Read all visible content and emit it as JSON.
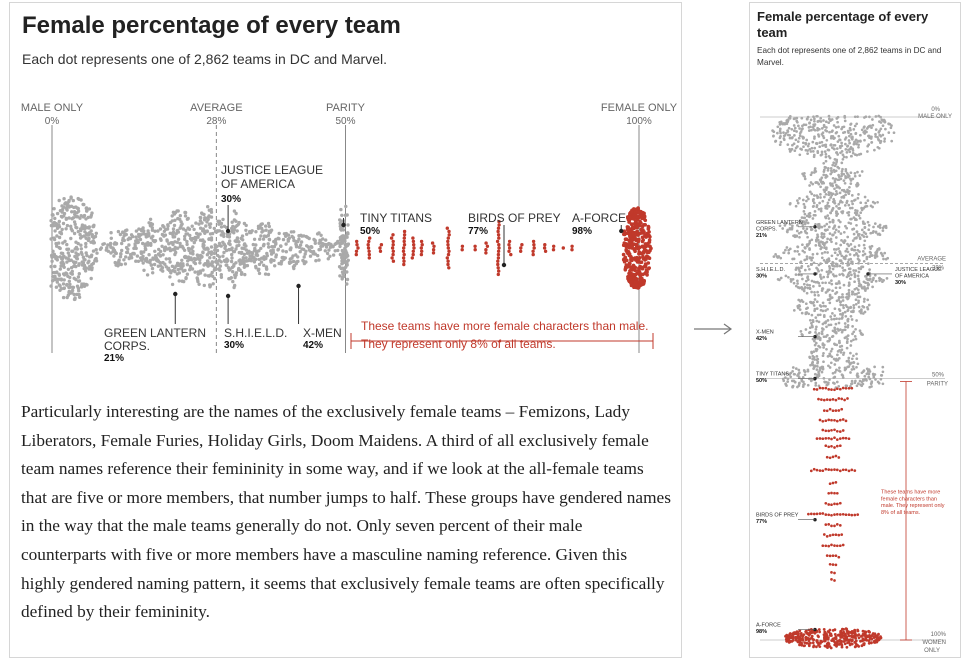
{
  "main": {
    "title": "Female percentage of every team",
    "subtitle": "Each dot represents one of 2,862 teams in DC and Marvel.",
    "axis_labels": [
      {
        "id": "male-only",
        "name": "MALE ONLY",
        "value_label": "0%",
        "value": 0,
        "dashed": false
      },
      {
        "id": "average",
        "name": "AVERAGE",
        "value_label": "28%",
        "value": 28,
        "dashed": true
      },
      {
        "id": "parity",
        "name": "PARITY",
        "value_label": "50%",
        "value": 50,
        "dashed": false
      },
      {
        "id": "female-only",
        "name": "FEMALE ONLY",
        "value_label": "100%",
        "value": 100,
        "dashed": false
      }
    ],
    "bracket_text": [
      "These teams have more female characters than male.",
      "They represent only 8% of all teams."
    ],
    "body_text": "Particularly interesting are the names of the exclusively female teams – Femizons, Lady Liberators, Female Furies, Holiday Girls, Doom Maidens. A third of all exclusively female team names reference their femininity in some way, and if we look at the all-female teams that are five or more members, that number jumps to half. These groups have gendered names in the way that the male teams generally do not. Only seven percent of their male counterparts with five or more members have a masculine naming reference. Given this highly gendered naming pattern, it seems that exclusively female teams are often specifically defined by their femininity."
  },
  "mini": {
    "title": "Female percentage of every team",
    "subtitle": "Each dot represents one of 2,862 teams in DC and Marvel.",
    "axis_labels": [
      {
        "id": "male-only",
        "lines": [
          "0%",
          "MALE ONLY"
        ],
        "value": 0
      },
      {
        "id": "average",
        "lines": [
          "AVERAGE",
          "28%"
        ],
        "value": 28
      },
      {
        "id": "parity",
        "lines": [
          "50%",
          "PARITY"
        ],
        "value": 50
      },
      {
        "id": "female-only",
        "lines": [
          "100%",
          "WOMEN",
          "ONLY"
        ],
        "value": 100
      }
    ],
    "bracket_text": [
      "These teams have more",
      "female characters than",
      "male. They represent only",
      "8% of all teams."
    ],
    "annotations": [
      {
        "id": "green-lantern",
        "lines": [
          "GREEN LANTERN",
          "CORPS."
        ],
        "pct": "21%",
        "side": "left",
        "value": 21
      },
      {
        "id": "shield",
        "lines": [
          "S.H.I.E.L.D."
        ],
        "pct": "30%",
        "side": "left",
        "value": 30
      },
      {
        "id": "justice-league",
        "lines": [
          "JUSTICE LEAGUE",
          "OF AMERICA"
        ],
        "pct": "30%",
        "side": "right",
        "value": 30
      },
      {
        "id": "x-men",
        "lines": [
          "X-MEN"
        ],
        "pct": "42%",
        "side": "left",
        "value": 42
      },
      {
        "id": "tiny-titans",
        "lines": [
          "TINY TITANS"
        ],
        "pct": "50%",
        "side": "left",
        "value": 50
      },
      {
        "id": "birds-of-prey",
        "lines": [
          "BIRDS OF PREY"
        ],
        "pct": "77%",
        "side": "left",
        "value": 77
      },
      {
        "id": "a-force",
        "lines": [
          "A-FORCE"
        ],
        "pct": "98%",
        "side": "left",
        "value": 98
      }
    ]
  },
  "chart_data": {
    "type": "scatter",
    "title": "Female percentage of every team",
    "subtitle": "Each dot represents one of 2,862 teams in DC and Marvel.",
    "x_range": [
      0,
      100
    ],
    "x_unit": "%",
    "reference_lines": [
      {
        "label": "MALE ONLY",
        "value": 0
      },
      {
        "label": "AVERAGE",
        "value": 28
      },
      {
        "label": "PARITY",
        "value": 50
      },
      {
        "label": "FEMALE ONLY",
        "value": 100
      }
    ],
    "highlight_color": "#c0392b",
    "base_color": "#a9a9a9",
    "labeled_teams": [
      {
        "name": "JUSTICE LEAGUE OF AMERICA",
        "value": 30,
        "pct_label": "30%"
      },
      {
        "name": "GREEN LANTERN CORPS.",
        "value": 21,
        "pct_label": "21%"
      },
      {
        "name": "S.H.I.E.L.D.",
        "value": 30,
        "pct_label": "30%"
      },
      {
        "name": "X-MEN",
        "value": 42,
        "pct_label": "42%"
      },
      {
        "name": "TINY TITANS",
        "value": 50,
        "pct_label": "50%"
      },
      {
        "name": "BIRDS OF PREY",
        "value": 77,
        "pct_label": "77%"
      },
      {
        "name": "A-FORCE",
        "value": 98,
        "pct_label": "98%"
      }
    ],
    "share_more_female": 8
  }
}
